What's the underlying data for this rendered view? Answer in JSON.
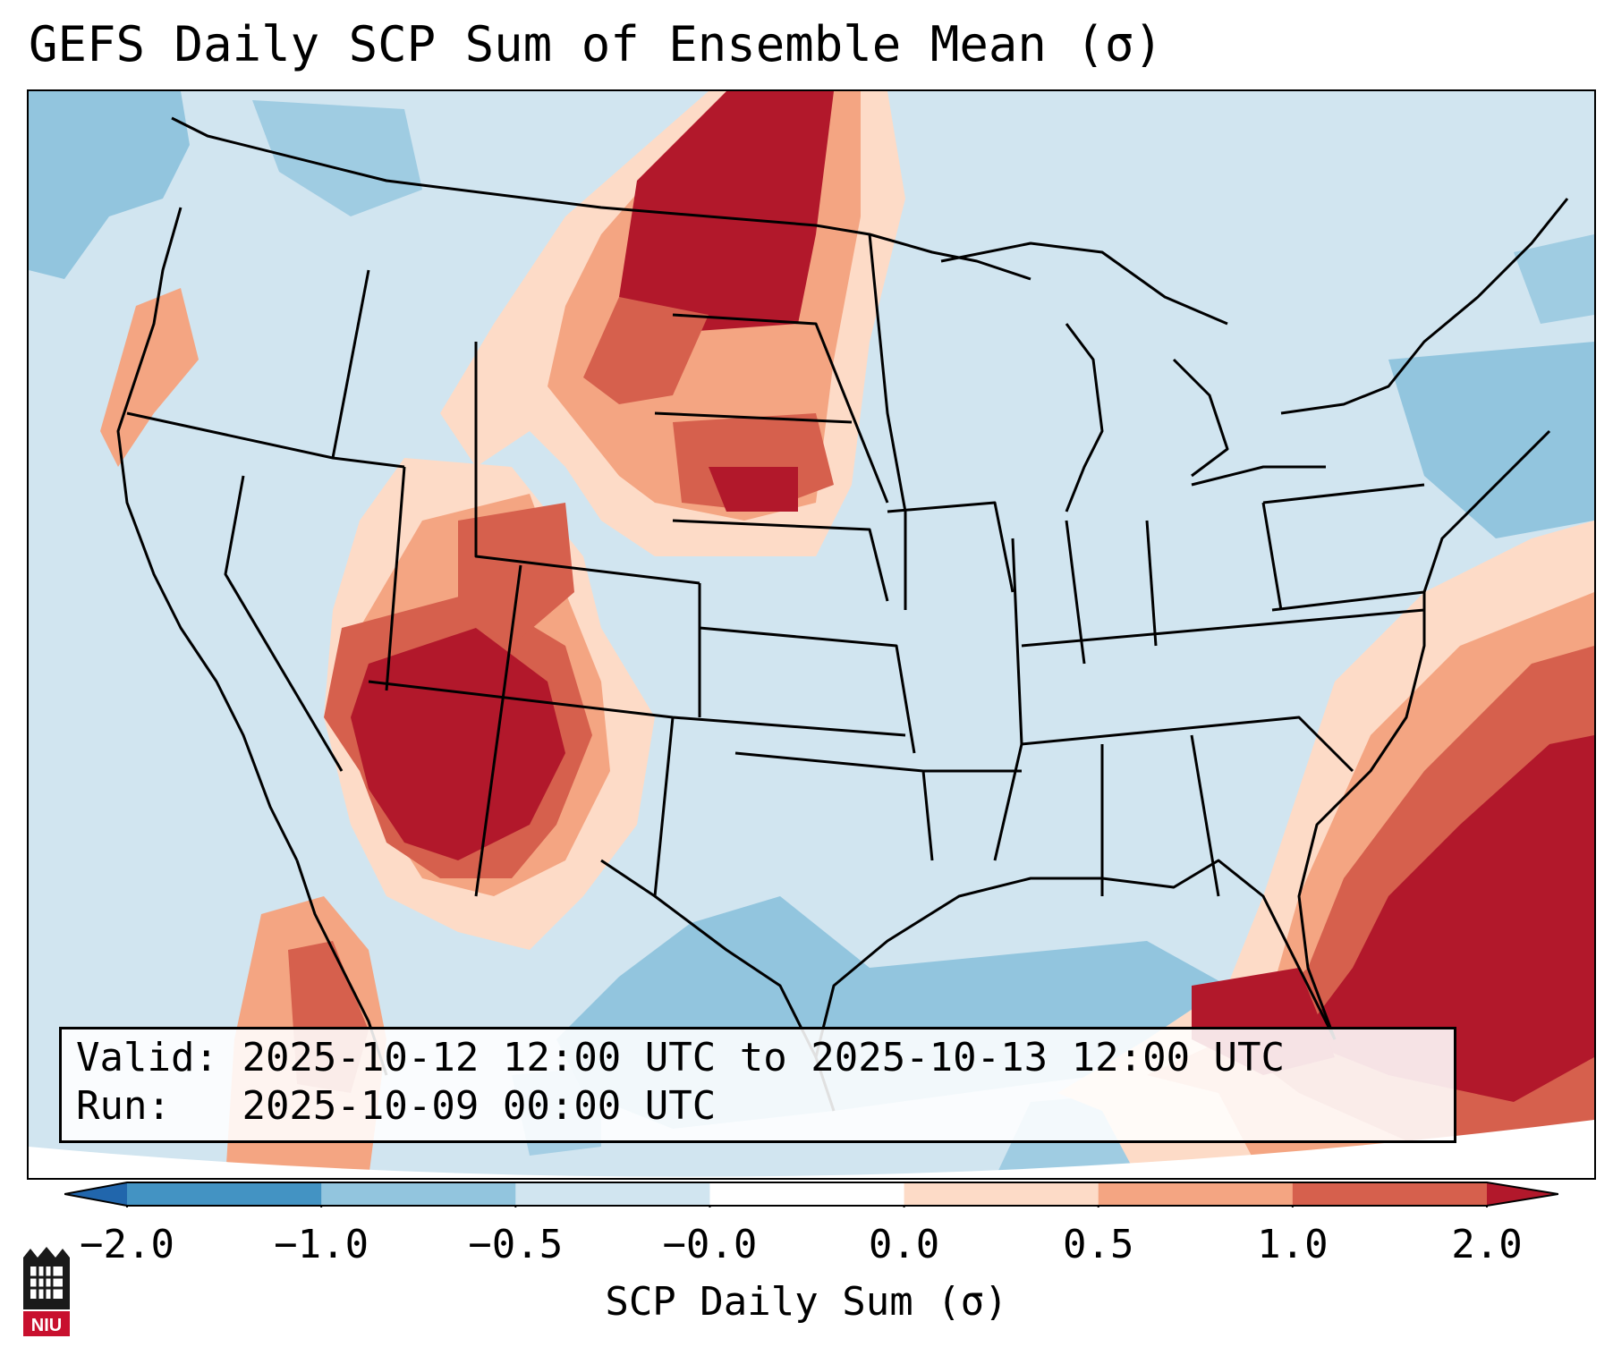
{
  "title": "GEFS Daily SCP Sum of Ensemble Mean (σ)",
  "valid_label": "Valid:",
  "valid_range": "2025-10-12 12:00 UTC to 2025-10-13 12:00 UTC",
  "run_label": "Run:",
  "run_time": "2025-10-09 00:00 UTC",
  "colorbar": {
    "label": "SCP Daily Sum (σ)",
    "ticks": [
      "−2.0",
      "−1.0",
      "−0.5",
      "−0.0",
      "0.0",
      "0.5",
      "1.0",
      "2.0"
    ],
    "colors": [
      "#2166ac",
      "#4393c3",
      "#92c5de",
      "#d1e5f0",
      "#ffffff",
      "#fddbc7",
      "#f4a582",
      "#d6604d",
      "#b2182b"
    ],
    "extend": "both"
  },
  "colors": {
    "strong_neg": "#4393c3",
    "neg": "#92c5de",
    "weak_neg": "#d1e5f0",
    "weak_pos": "#fddbc7",
    "pos": "#f4a582",
    "strong_pos": "#d6604d",
    "extreme_pos": "#b2182b"
  },
  "logo_text": "NIU"
}
